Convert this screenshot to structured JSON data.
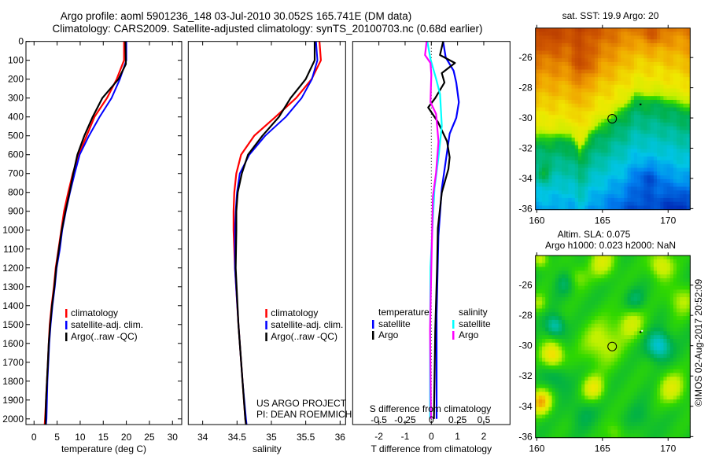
{
  "title": {
    "line1": "Argo profile: aoml 5901236_148 03-Jul-2010 30.052S 165.741E (DM data)",
    "line2": "Climatology: CARS2009. Satellite-adjusted climatology: synTS_20100703.nc (0.68d earlier)"
  },
  "credit": {
    "project": "US ARGO PROJECT",
    "pi": "PI: DEAN ROEMMICH",
    "copyright": "©IMOS 02-Aug-2017 20:52:09"
  },
  "colors": {
    "climatology": "#ff0000",
    "satellite_adj": "#0000ff",
    "argo": "#000000",
    "sal_satellite": "#00ffff",
    "sal_argo": "#ff00ff"
  },
  "chart_data": [
    {
      "type": "line",
      "id": "temperature",
      "xlabel": "temperature (deg C)",
      "ylabel": "",
      "xlim": [
        -1.75,
        32
      ],
      "ylim": [
        2030,
        0
      ],
      "xticks": [
        0,
        5,
        10,
        15,
        20,
        25,
        30
      ],
      "xtick_labels": [
        "0",
        "5",
        "10",
        "15",
        "20",
        "25",
        "30"
      ],
      "yticks": [
        0,
        100,
        200,
        300,
        400,
        500,
        600,
        700,
        800,
        900,
        1000,
        1100,
        1200,
        1300,
        1400,
        1500,
        1600,
        1700,
        1800,
        1900,
        2000
      ],
      "ytick_labels": [
        "0",
        "100",
        "200",
        "300",
        "400",
        "500",
        "600",
        "700",
        "800",
        "900",
        "1000",
        "1100",
        "1200",
        "1300",
        "1400",
        "1500",
        "1600",
        "1700",
        "1800",
        "1900",
        "2000"
      ],
      "legend": [
        "climatology",
        "satellite-adj. clim.",
        "Argo(..raw -QC)"
      ],
      "series": [
        {
          "name": "climatology",
          "color": "#ff0000",
          "depth": [
            0,
            100,
            200,
            300,
            400,
            500,
            600,
            700,
            800,
            900,
            1000,
            1100,
            1200,
            1300,
            1400,
            1500,
            1600,
            1700,
            1800,
            1900,
            2000,
            2030
          ],
          "values": [
            19.5,
            19.5,
            17.9,
            15.8,
            13.1,
            11.4,
            9.7,
            8.4,
            7.4,
            6.5,
            5.9,
            5.3,
            4.7,
            4.3,
            3.8,
            3.4,
            3.2,
            3.0,
            2.8,
            2.6,
            2.4,
            2.3
          ]
        },
        {
          "name": "satellite-adj. clim.",
          "color": "#0000ff",
          "depth": [
            0,
            100,
            200,
            300,
            400,
            500,
            600,
            700,
            800,
            900,
            1000,
            1100,
            1200,
            1300,
            1400,
            1500,
            1600,
            1700,
            1800,
            1900,
            2000,
            2030
          ],
          "values": [
            20.0,
            20.0,
            18.6,
            16.8,
            14.2,
            11.9,
            9.9,
            8.8,
            7.8,
            6.9,
            6.1,
            5.6,
            4.9,
            4.5,
            4.0,
            3.6,
            3.3,
            3.1,
            2.9,
            2.8,
            2.7,
            2.6
          ]
        },
        {
          "name": "Argo(..raw -QC)",
          "color": "#000000",
          "depth": [
            0,
            120,
            200,
            300,
            400,
            500,
            600,
            700,
            800,
            900,
            1000,
            1100,
            1200,
            1300,
            1400,
            1500,
            1600,
            1700,
            1800,
            1900,
            2000,
            2030
          ],
          "values": [
            19.8,
            19.9,
            18.3,
            14.8,
            12.7,
            10.9,
            9.4,
            8.5,
            7.7,
            6.8,
            6.0,
            5.4,
            4.8,
            4.4,
            3.9,
            3.5,
            3.2,
            3.0,
            2.8,
            2.6,
            2.5,
            2.5
          ]
        }
      ]
    },
    {
      "type": "line",
      "id": "salinity",
      "xlabel": "salinity",
      "xlim": [
        33.79,
        36.08
      ],
      "ylim": [
        2030,
        0
      ],
      "xticks": [
        34,
        34.5,
        35,
        35.5,
        36
      ],
      "xtick_labels": [
        "34",
        "34.5",
        "35",
        "35.5",
        "36"
      ],
      "legend": [
        "climatology",
        "satellite-adj. clim.",
        "Argo(..raw -QC)"
      ],
      "series": [
        {
          "name": "climatology",
          "color": "#ff0000",
          "depth": [
            0,
            100,
            200,
            300,
            400,
            500,
            600,
            700,
            800,
            900,
            1000,
            1200,
            1500,
            1800,
            2000,
            2030
          ],
          "values": [
            35.7,
            35.72,
            35.585,
            35.36,
            35.06,
            34.75,
            34.56,
            34.49,
            34.46,
            34.45,
            34.45,
            34.47,
            34.52,
            34.58,
            34.62,
            34.63
          ]
        },
        {
          "name": "satellite-adj. clim.",
          "color": "#0000ff",
          "depth": [
            0,
            100,
            200,
            300,
            400,
            500,
            600,
            700,
            800,
            900,
            1000,
            1200,
            1500,
            1800,
            2000,
            2030
          ],
          "values": [
            35.65,
            35.67,
            35.59,
            35.44,
            35.21,
            34.91,
            34.68,
            34.54,
            34.5,
            34.48,
            34.47,
            34.47,
            34.52,
            34.58,
            34.63,
            34.64
          ]
        },
        {
          "name": "Argo(..raw -QC)",
          "color": "#000000",
          "depth": [
            0,
            100,
            200,
            300,
            400,
            500,
            600,
            700,
            800,
            900,
            1000,
            1200,
            1500,
            1800,
            2000,
            2030
          ],
          "values": [
            35.63,
            35.63,
            35.5,
            35.28,
            35.11,
            34.87,
            34.66,
            34.57,
            34.51,
            34.49,
            34.49,
            34.48,
            34.52,
            34.58,
            34.62,
            34.63
          ]
        }
      ]
    },
    {
      "type": "line",
      "id": "difference",
      "xlabel": "T difference from climatology",
      "xlabel2": "S difference from climatology",
      "xlim": [
        -3,
        3
      ],
      "xlim_salinity": [
        -0.75,
        0.75
      ],
      "ylim": [
        2030,
        0
      ],
      "xticks": [
        -2,
        -1,
        0,
        1,
        2
      ],
      "xtick_labels": [
        "-2",
        "-1",
        "0",
        "1",
        "2"
      ],
      "sticks": [
        -0.5,
        -0.25,
        0,
        0.25,
        0.5
      ],
      "stick_labels": [
        "-0.5",
        "-0.25",
        "0",
        "0.25",
        "0.5"
      ],
      "legend": {
        "temperature": "temperature",
        "salinity": "salinity",
        "satellite": "satellite",
        "argo": "Argo"
      },
      "series": [
        {
          "name": "temperature satellite",
          "var": "T",
          "color": "#0000ff",
          "depth": [
            0,
            85,
            155,
            218,
            322,
            405,
            489,
            635,
            780,
            1030,
            1447,
            1864,
            2000
          ],
          "values": [
            0.45,
            0.55,
            0.85,
            0.95,
            1.05,
            0.95,
            0.7,
            0.55,
            0.4,
            0.27,
            0.2,
            0.2,
            0.2
          ]
        },
        {
          "name": "temperature Argo",
          "var": "T",
          "color": "#000000",
          "depth": [
            0,
            72,
            114,
            168,
            218,
            300,
            350,
            426,
            530,
            614,
            676,
            801,
            989,
            1197,
            1530,
            2000
          ],
          "values": [
            0.45,
            0.33,
            0.9,
            0.4,
            0.5,
            0.15,
            -0.12,
            0.25,
            0.6,
            0.7,
            0.65,
            0.4,
            0.25,
            0.22,
            0.15,
            0.1
          ]
        },
        {
          "name": "salinity satellite",
          "var": "S",
          "color": "#00ffff",
          "depth": [
            0,
            93,
            197,
            280,
            447,
            614,
            780,
            1197,
            1655,
            2000
          ],
          "values": [
            -0.038,
            -0.008,
            0.045,
            0.083,
            0.1,
            0.068,
            0.03,
            -0.008,
            -0.012,
            -0.012
          ]
        },
        {
          "name": "salinity Argo",
          "var": "S",
          "color": "#ff00ff",
          "depth": [
            0,
            72,
            114,
            176,
            322,
            384,
            530,
            697,
            822,
            1197,
            1530,
            2000
          ],
          "values": [
            -0.045,
            -0.06,
            -0.008,
            0,
            -0.008,
            0.045,
            0.068,
            0.045,
            0.015,
            0,
            -0.012,
            -0.003
          ]
        }
      ]
    },
    {
      "type": "heatmap",
      "id": "sst_map",
      "title": "sat. SST: 19.9 Argo: 20",
      "xlim": [
        159.9,
        171.68
      ],
      "ylim": [
        -36.07,
        -24.05
      ],
      "xtick_labels": [
        "160",
        "165",
        "170"
      ],
      "xticks": [
        160,
        165,
        170
      ],
      "ytick_labels": [
        "-26",
        "-28",
        "-30",
        "-32",
        "-34",
        "-36"
      ],
      "yticks": [
        -26,
        -28,
        -30,
        -32,
        -34,
        -36
      ],
      "profile_location": [
        165.741,
        -30.052
      ]
    },
    {
      "type": "heatmap",
      "id": "sla_map",
      "title": "Altim. SLA: 0.075",
      "subtitle": "Argo h1000: 0.023 h2000: NaN",
      "xlim": [
        159.9,
        171.68
      ],
      "ylim": [
        -36.07,
        -24.05
      ],
      "xtick_labels": [
        "160",
        "165",
        "170"
      ],
      "xticks": [
        160,
        165,
        170
      ],
      "ytick_labels": [
        "-26",
        "-28",
        "-30",
        "-32",
        "-34",
        "-36"
      ],
      "yticks": [
        -26,
        -28,
        -30,
        -32,
        -34,
        -36
      ],
      "profile_location": [
        165.741,
        -30.052
      ]
    }
  ]
}
